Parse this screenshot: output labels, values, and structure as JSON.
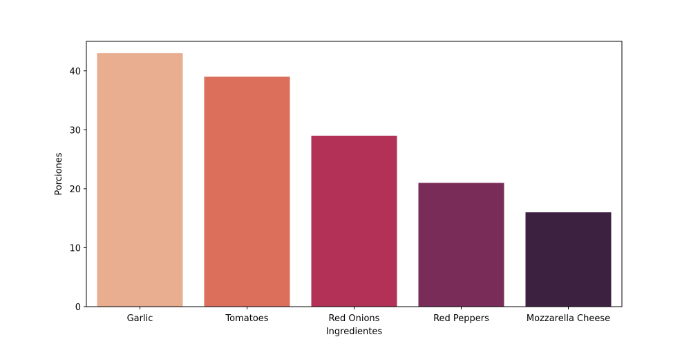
{
  "chart_data": {
    "type": "bar",
    "title": "",
    "xlabel": "Ingredientes",
    "ylabel": "Porciones",
    "categories": [
      "Garlic",
      "Tomatoes",
      "Red Onions",
      "Red Peppers",
      "Mozzarella Cheese"
    ],
    "values": [
      43,
      39,
      29,
      21,
      16
    ],
    "colors": [
      "#e9ae8f",
      "#db6f5b",
      "#b33057",
      "#792c58",
      "#3c2240"
    ],
    "ylim": [
      0,
      45
    ],
    "yticks": [
      0,
      10,
      20,
      30,
      40
    ],
    "grid": false,
    "legend": "none"
  }
}
